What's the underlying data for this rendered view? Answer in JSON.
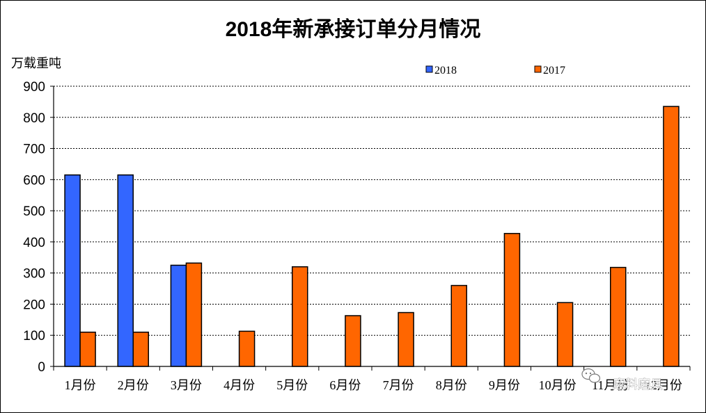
{
  "chart_data": {
    "type": "bar",
    "title": "2018年新承接订单分月情况",
    "ylabel": "万载重吨",
    "xlabel": "",
    "ylim": [
      0,
      900
    ],
    "yticks": [
      0,
      100,
      200,
      300,
      400,
      500,
      600,
      700,
      800,
      900
    ],
    "grid": true,
    "legend_position": "top-right",
    "categories": [
      "1月份",
      "2月份",
      "3月份",
      "4月份",
      "5月份",
      "6月份",
      "7月份",
      "8月份",
      "9月份",
      "10月份",
      "11月份",
      "12月份"
    ],
    "series": [
      {
        "name": "2018",
        "color": "#3366FF",
        "values": [
          615,
          615,
          325,
          null,
          null,
          null,
          null,
          null,
          null,
          null,
          null,
          null
        ]
      },
      {
        "name": "2017",
        "color": "#FF6600",
        "values": [
          110,
          110,
          332,
          113,
          320,
          163,
          173,
          260,
          427,
          205,
          318,
          835
        ]
      }
    ]
  },
  "watermark": {
    "icon": "wechat-icon",
    "text": "磨料磨具"
  }
}
